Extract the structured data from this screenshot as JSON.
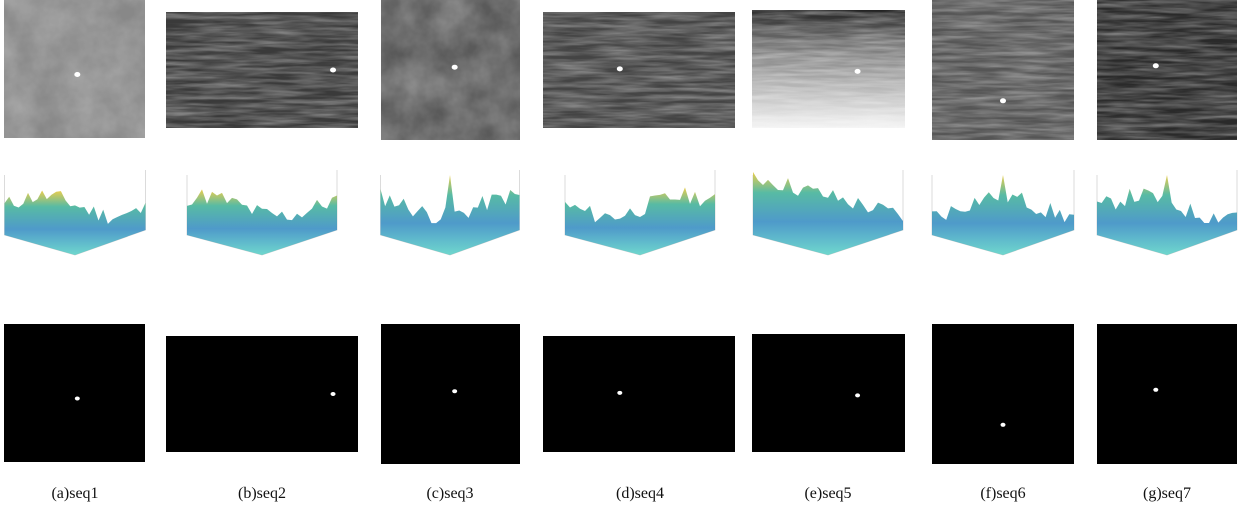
{
  "captions": [
    "(a)seq1",
    "(b)seq2",
    "(c)seq3",
    "(d)seq4",
    "(e)seq5",
    "(f)seq6",
    "(g)seq7"
  ]
}
